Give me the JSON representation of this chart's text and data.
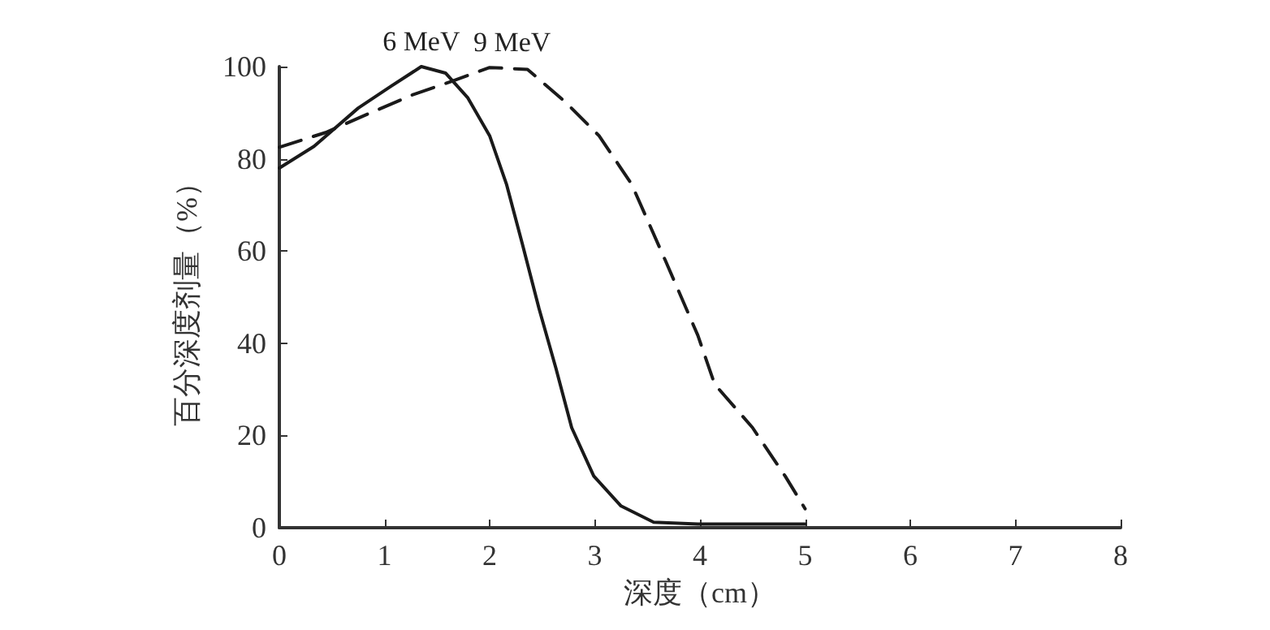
{
  "chart_data": {
    "type": "line",
    "xlabel": "深度（cm）",
    "ylabel": "百分深度剂量（%）",
    "xlim": [
      0,
      8
    ],
    "xticks": [
      0,
      1,
      2,
      3,
      4,
      5,
      6,
      7,
      8
    ],
    "ylim": [
      0,
      100
    ],
    "yticks": [
      0,
      20,
      40,
      60,
      80,
      100
    ],
    "grid": false,
    "legend": false,
    "marker": "none",
    "series": [
      {
        "name": "6 MeV",
        "color": "#1a1a1a",
        "line_style": "solid",
        "x": [
          0,
          0.33,
          0.75,
          1.06,
          1.35,
          1.58,
          1.79,
          2.0,
          2.16,
          2.31,
          2.47,
          2.63,
          2.78,
          2.99,
          3.25,
          3.56,
          3.98,
          5
        ],
        "values": [
          78,
          82.7,
          91,
          95.7,
          100,
          98.6,
          93.3,
          85,
          74.5,
          61.6,
          47.5,
          34.6,
          21.7,
          11.2,
          4.7,
          1.2,
          0.8,
          0.8
        ]
      },
      {
        "name": "9 MeV",
        "color": "#1a1a1a",
        "line_style": "dashed",
        "x": [
          0,
          0.44,
          0.85,
          1.27,
          1.64,
          2.0,
          2.36,
          2.73,
          3.04,
          3.35,
          3.67,
          3.98,
          4.14,
          4.5,
          4.81,
          5
        ],
        "values": [
          82.5,
          85.7,
          89.8,
          93.9,
          96.8,
          99.8,
          99.4,
          92.1,
          85,
          74.5,
          58,
          41.7,
          31.1,
          21.7,
          11.2,
          4.1
        ]
      }
    ]
  }
}
